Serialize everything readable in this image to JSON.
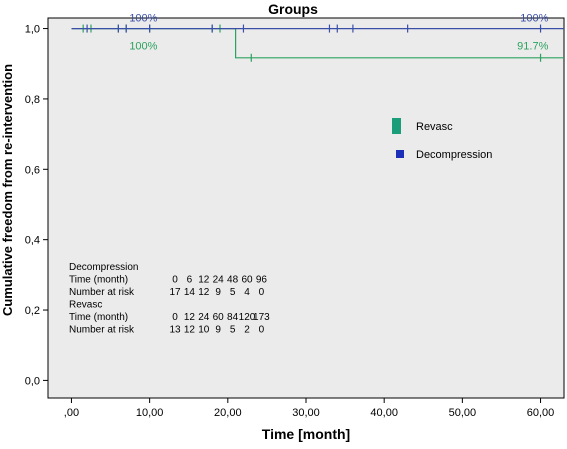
{
  "chart_data": {
    "type": "line",
    "title": "Groups",
    "xlabel": "Time [month]",
    "ylabel": "Cumulative freedom from re-intervention",
    "xlim": [
      -3,
      63
    ],
    "ylim": [
      -0.05,
      1.03
    ],
    "xticks": [
      0,
      10,
      20,
      30,
      40,
      50,
      60
    ],
    "xtick_labels": [
      ",00",
      "10,00",
      "20,00",
      "30,00",
      "40,00",
      "50,00",
      "60,00"
    ],
    "yticks": [
      0,
      0.2,
      0.4,
      0.6,
      0.8,
      1.0
    ],
    "ytick_labels": [
      "0,0",
      "0,2",
      "0,4",
      "0,6",
      "0,8",
      "1,0"
    ],
    "grid": false,
    "plot_background": "#ebebeb",
    "legend_position": "right",
    "series": [
      {
        "name": "Revasc",
        "color": "#2ca25f",
        "marker_color": "#1a9e7a",
        "steps": [
          [
            0,
            1.0
          ],
          [
            21,
            1.0
          ],
          [
            21,
            0.917
          ],
          [
            63,
            0.917
          ]
        ],
        "censored": [
          [
            1.5,
            1.0
          ],
          [
            2.5,
            1.0
          ],
          [
            6,
            1.0
          ],
          [
            7,
            1.0
          ],
          [
            10,
            1.0
          ],
          [
            18,
            1.0
          ],
          [
            19,
            1.0
          ],
          [
            23,
            0.917
          ],
          [
            60,
            0.917
          ]
        ],
        "annotations": [
          {
            "text": "100%",
            "x": 11,
            "y": 0.952
          },
          {
            "text": "91.7%",
            "x": 61,
            "y": 0.952
          }
        ]
      },
      {
        "name": "Decompression",
        "color": "#3a4fa8",
        "marker_color": "#1c2fb8",
        "steps": [
          [
            0,
            1.0
          ],
          [
            63,
            1.0
          ]
        ],
        "censored": [
          [
            2,
            1.0
          ],
          [
            6,
            1.0
          ],
          [
            7,
            1.0
          ],
          [
            10,
            1.0
          ],
          [
            18,
            1.0
          ],
          [
            22,
            1.0
          ],
          [
            33,
            1.0
          ],
          [
            34,
            1.0
          ],
          [
            36,
            1.0
          ],
          [
            43,
            1.0
          ],
          [
            60,
            1.0
          ]
        ],
        "annotations": [
          {
            "text": "100%",
            "x": 11,
            "y": 1.032
          },
          {
            "text": "100%",
            "x": 61,
            "y": 1.032
          }
        ]
      }
    ],
    "risk_table": {
      "groups": [
        {
          "name": "Decompression",
          "time_label": "Time (month)",
          "times": [
            "0",
            "6",
            "12",
            "24",
            "48",
            "60",
            "96"
          ],
          "risk_label": "Number at risk",
          "at_risk": [
            "17",
            "14",
            "12",
            "9",
            "5",
            "4",
            "0"
          ]
        },
        {
          "name": "Revasc",
          "time_label": "Time (month)",
          "times": [
            "0",
            "12",
            "24",
            "60",
            "84",
            "120",
            "173"
          ],
          "risk_label": "Number at risk",
          "at_risk": [
            "13",
            "12",
            "10",
            "9",
            "5",
            "2",
            "0"
          ]
        }
      ]
    }
  }
}
